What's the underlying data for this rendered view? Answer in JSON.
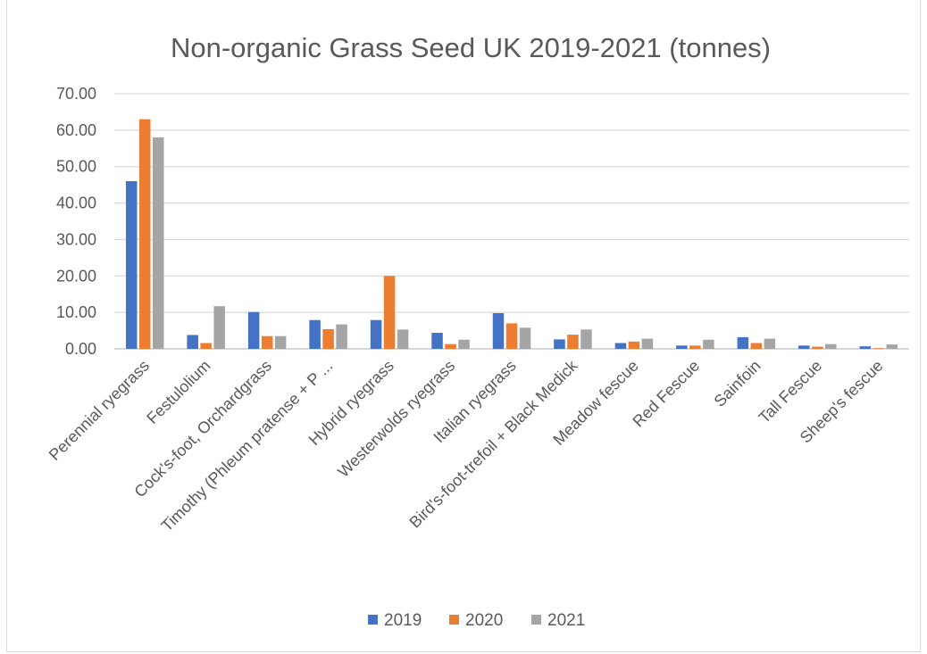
{
  "chart_data": {
    "type": "bar",
    "title": "Non-organic Grass Seed UK 2019-2021 (tonnes)",
    "categories": [
      "Perennial ryegrass",
      "Festulolium",
      "Cock's-foot, Orchardgrass",
      "Timothy (Phleum pratense + P ...",
      "Hybrid ryegrass",
      "Westerwolds ryegrass",
      "Italian ryegrass",
      "Bird's-foot-trefoil + Black Medick",
      "Meadow fescue",
      "Red Fescue",
      "Sainfoin",
      "Tall Fescue",
      "Sheep's fescue"
    ],
    "series": [
      {
        "name": "2019",
        "color": "#4472c4",
        "values": [
          46.0,
          3.8,
          10.1,
          7.9,
          7.9,
          4.4,
          9.8,
          2.6,
          1.6,
          0.9,
          3.2,
          0.9,
          0.7
        ]
      },
      {
        "name": "2020",
        "color": "#ed7d31",
        "values": [
          63.0,
          1.6,
          3.5,
          5.4,
          20.0,
          1.3,
          7.0,
          3.9,
          2.0,
          0.9,
          1.6,
          0.6,
          0.2
        ]
      },
      {
        "name": "2021",
        "color": "#a5a5a5",
        "values": [
          58.0,
          11.7,
          3.5,
          6.7,
          5.3,
          2.5,
          5.8,
          5.3,
          2.8,
          2.5,
          2.8,
          1.3,
          1.2
        ]
      }
    ],
    "y_ticks": [
      "0.00",
      "10.00",
      "20.00",
      "30.00",
      "40.00",
      "50.00",
      "60.00",
      "70.00"
    ],
    "ylim": [
      0,
      70
    ],
    "grid": true,
    "legend_position": "bottom"
  }
}
